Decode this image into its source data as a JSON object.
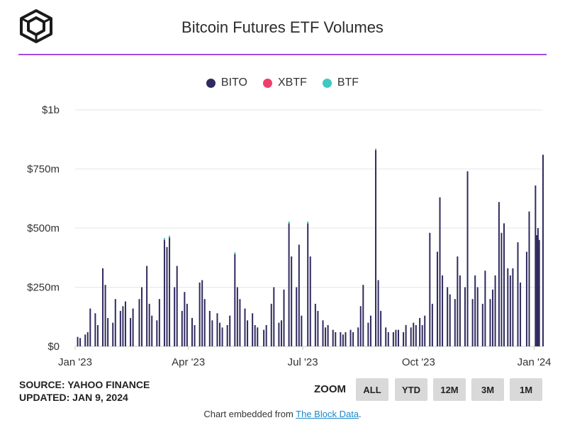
{
  "header": {
    "title": "Bitcoin Futures ETF Volumes"
  },
  "legend": [
    {
      "name": "BITO",
      "color": "#2f2a5e"
    },
    {
      "name": "XBTF",
      "color": "#ef3e6b"
    },
    {
      "name": "BTF",
      "color": "#3ec9c2"
    }
  ],
  "chart_data": {
    "type": "bar",
    "title": "Bitcoin Futures ETF Volumes",
    "y_ticks": [
      "$0",
      "$250m",
      "$500m",
      "$750m",
      "$1b"
    ],
    "y_tick_values": [
      0,
      250,
      500,
      750,
      1000
    ],
    "ylim": [
      0,
      1000
    ],
    "y_unit": "millions USD",
    "x_ticks": [
      "Jan '23",
      "Apr '23",
      "Jul '23",
      "Oct '23",
      "Jan '24"
    ],
    "x_tick_dates": [
      "2023-01-01",
      "2023-04-01",
      "2023-07-01",
      "2023-10-01",
      "2024-01-01"
    ],
    "xlim": [
      "2023-01-01",
      "2024-01-08"
    ],
    "grid": true,
    "legend_position": "top-center",
    "series": [
      {
        "name": "BITO",
        "points": [
          [
            "2023-01-03",
            40
          ],
          [
            "2023-01-05",
            35
          ],
          [
            "2023-01-09",
            50
          ],
          [
            "2023-01-11",
            60
          ],
          [
            "2023-01-13",
            160
          ],
          [
            "2023-01-17",
            140
          ],
          [
            "2023-01-19",
            90
          ],
          [
            "2023-01-23",
            330
          ],
          [
            "2023-01-25",
            260
          ],
          [
            "2023-01-27",
            120
          ],
          [
            "2023-01-31",
            100
          ],
          [
            "2023-02-02",
            200
          ],
          [
            "2023-02-06",
            150
          ],
          [
            "2023-02-08",
            170
          ],
          [
            "2023-02-10",
            190
          ],
          [
            "2023-02-14",
            120
          ],
          [
            "2023-02-16",
            160
          ],
          [
            "2023-02-21",
            200
          ],
          [
            "2023-02-23",
            250
          ],
          [
            "2023-02-27",
            340
          ],
          [
            "2023-03-01",
            180
          ],
          [
            "2023-03-03",
            130
          ],
          [
            "2023-03-07",
            110
          ],
          [
            "2023-03-09",
            200
          ],
          [
            "2023-03-13",
            450
          ],
          [
            "2023-03-15",
            420
          ],
          [
            "2023-03-17",
            460
          ],
          [
            "2023-03-21",
            250
          ],
          [
            "2023-03-23",
            340
          ],
          [
            "2023-03-27",
            150
          ],
          [
            "2023-03-29",
            230
          ],
          [
            "2023-03-31",
            180
          ],
          [
            "2023-04-04",
            120
          ],
          [
            "2023-04-06",
            90
          ],
          [
            "2023-04-10",
            270
          ],
          [
            "2023-04-12",
            280
          ],
          [
            "2023-04-14",
            200
          ],
          [
            "2023-04-18",
            150
          ],
          [
            "2023-04-20",
            110
          ],
          [
            "2023-04-24",
            140
          ],
          [
            "2023-04-26",
            100
          ],
          [
            "2023-04-28",
            80
          ],
          [
            "2023-05-02",
            90
          ],
          [
            "2023-05-04",
            130
          ],
          [
            "2023-05-08",
            390
          ],
          [
            "2023-05-10",
            250
          ],
          [
            "2023-05-12",
            200
          ],
          [
            "2023-05-16",
            160
          ],
          [
            "2023-05-18",
            110
          ],
          [
            "2023-05-22",
            140
          ],
          [
            "2023-05-24",
            90
          ],
          [
            "2023-05-26",
            80
          ],
          [
            "2023-05-31",
            70
          ],
          [
            "2023-06-02",
            90
          ],
          [
            "2023-06-06",
            180
          ],
          [
            "2023-06-08",
            250
          ],
          [
            "2023-06-12",
            100
          ],
          [
            "2023-06-14",
            110
          ],
          [
            "2023-06-16",
            240
          ],
          [
            "2023-06-20",
            520
          ],
          [
            "2023-06-22",
            380
          ],
          [
            "2023-06-26",
            250
          ],
          [
            "2023-06-28",
            430
          ],
          [
            "2023-06-30",
            130
          ],
          [
            "2023-07-05",
            520
          ],
          [
            "2023-07-07",
            380
          ],
          [
            "2023-07-11",
            180
          ],
          [
            "2023-07-13",
            150
          ],
          [
            "2023-07-17",
            110
          ],
          [
            "2023-07-19",
            80
          ],
          [
            "2023-07-21",
            90
          ],
          [
            "2023-07-25",
            70
          ],
          [
            "2023-07-27",
            60
          ],
          [
            "2023-07-31",
            60
          ],
          [
            "2023-08-02",
            50
          ],
          [
            "2023-08-04",
            60
          ],
          [
            "2023-08-08",
            70
          ],
          [
            "2023-08-10",
            60
          ],
          [
            "2023-08-14",
            80
          ],
          [
            "2023-08-16",
            170
          ],
          [
            "2023-08-18",
            260
          ],
          [
            "2023-08-22",
            100
          ],
          [
            "2023-08-24",
            130
          ],
          [
            "2023-08-28",
            830
          ],
          [
            "2023-08-30",
            280
          ],
          [
            "2023-09-01",
            150
          ],
          [
            "2023-09-05",
            80
          ],
          [
            "2023-09-07",
            60
          ],
          [
            "2023-09-11",
            60
          ],
          [
            "2023-09-13",
            70
          ],
          [
            "2023-09-15",
            70
          ],
          [
            "2023-09-19",
            60
          ],
          [
            "2023-09-21",
            90
          ],
          [
            "2023-09-25",
            80
          ],
          [
            "2023-09-27",
            100
          ],
          [
            "2023-09-29",
            90
          ],
          [
            "2023-10-02",
            120
          ],
          [
            "2023-10-04",
            90
          ],
          [
            "2023-10-06",
            130
          ],
          [
            "2023-10-10",
            480
          ],
          [
            "2023-10-12",
            180
          ],
          [
            "2023-10-16",
            400
          ],
          [
            "2023-10-18",
            630
          ],
          [
            "2023-10-20",
            300
          ],
          [
            "2023-10-24",
            250
          ],
          [
            "2023-10-26",
            220
          ],
          [
            "2023-10-30",
            200
          ],
          [
            "2023-11-01",
            380
          ],
          [
            "2023-11-03",
            300
          ],
          [
            "2023-11-07",
            250
          ],
          [
            "2023-11-09",
            740
          ],
          [
            "2023-11-13",
            200
          ],
          [
            "2023-11-15",
            300
          ],
          [
            "2023-11-17",
            250
          ],
          [
            "2023-11-21",
            180
          ],
          [
            "2023-11-23",
            320
          ],
          [
            "2023-11-27",
            200
          ],
          [
            "2023-11-29",
            240
          ],
          [
            "2023-12-01",
            300
          ],
          [
            "2023-12-04",
            610
          ],
          [
            "2023-12-06",
            480
          ],
          [
            "2023-12-08",
            520
          ],
          [
            "2023-12-11",
            330
          ],
          [
            "2023-12-13",
            300
          ],
          [
            "2023-12-15",
            330
          ],
          [
            "2023-12-19",
            440
          ],
          [
            "2023-12-21",
            270
          ],
          [
            "2023-12-26",
            400
          ],
          [
            "2023-12-28",
            570
          ],
          [
            "2024-01-02",
            680
          ],
          [
            "2024-01-03",
            470
          ],
          [
            "2024-01-04",
            500
          ],
          [
            "2024-01-05",
            450
          ],
          [
            "2024-01-08",
            810
          ]
        ]
      },
      {
        "name": "XBTF",
        "points": []
      },
      {
        "name": "BTF",
        "points": [
          [
            "2023-03-13",
            8
          ],
          [
            "2023-03-17",
            8
          ],
          [
            "2023-05-08",
            8
          ],
          [
            "2023-06-20",
            8
          ],
          [
            "2023-07-05",
            8
          ],
          [
            "2023-08-28",
            6
          ]
        ]
      }
    ]
  },
  "footer": {
    "source": "SOURCE: YAHOO FINANCE",
    "updated": "UPDATED: JAN 9, 2024",
    "zoom_label": "ZOOM",
    "zoom_buttons": [
      "ALL",
      "YTD",
      "12M",
      "3M",
      "1M"
    ],
    "embed_text": "Chart embedded from",
    "embed_link": "The Block Data",
    "embed_suffix": "."
  }
}
